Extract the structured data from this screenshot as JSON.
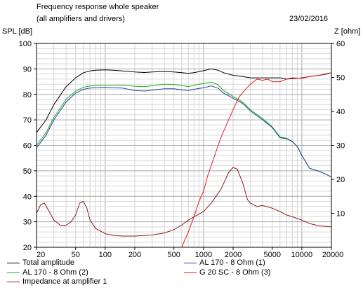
{
  "header": {
    "title_line1": "Frequency response whole speaker",
    "title_line2": "(all amplifiers and drivers)",
    "date": "23/02/2016",
    "left_axis_label": "SPL [dB]",
    "right_axis_label": "Z [ohm]"
  },
  "chart_data": {
    "type": "line",
    "title": "Frequency response whole speaker",
    "subtitle": "(all amplifiers and drivers)",
    "x_scale": "log",
    "xlim": [
      20,
      20000
    ],
    "x_ticks": [
      20,
      50,
      100,
      200,
      500,
      1000,
      2000,
      5000,
      10000,
      20000
    ],
    "x_tick_labels": [
      "20",
      "50",
      "100",
      "200",
      "500",
      "1000",
      "2000",
      "5000",
      "10000",
      "20000"
    ],
    "ylabel": "SPL [dB]",
    "ylim": [
      20,
      100
    ],
    "y_ticks": [
      20,
      30,
      40,
      50,
      60,
      70,
      80,
      90,
      100
    ],
    "y2label": "Z [ohm]",
    "y2lim": [
      0,
      60
    ],
    "y2_ticks": [
      10,
      20,
      30,
      40,
      50,
      60
    ],
    "grid": true,
    "legend_position": "bottom",
    "series": [
      {
        "name": "Total amplitude",
        "axis": "left",
        "color": "#000000",
        "points": [
          [
            20,
            65
          ],
          [
            25,
            70
          ],
          [
            30,
            76
          ],
          [
            40,
            83
          ],
          [
            50,
            86.5
          ],
          [
            60,
            88.5
          ],
          [
            70,
            89.2
          ],
          [
            80,
            89.5
          ],
          [
            100,
            89.6
          ],
          [
            120,
            89.5
          ],
          [
            150,
            89.2
          ],
          [
            200,
            88.8
          ],
          [
            250,
            88.6
          ],
          [
            300,
            88.8
          ],
          [
            400,
            89
          ],
          [
            500,
            88.8
          ],
          [
            600,
            88.5
          ],
          [
            700,
            88.3
          ],
          [
            800,
            88.5
          ],
          [
            1000,
            89.3
          ],
          [
            1200,
            90
          ],
          [
            1400,
            89.5
          ],
          [
            1600,
            88.5
          ],
          [
            2000,
            87.5
          ],
          [
            2500,
            87
          ],
          [
            3000,
            86.5
          ],
          [
            4000,
            86.5
          ],
          [
            5000,
            86.5
          ],
          [
            6000,
            86.5
          ],
          [
            7000,
            86
          ],
          [
            8000,
            86.2
          ],
          [
            10000,
            86.5
          ],
          [
            12000,
            87
          ],
          [
            15000,
            87.5
          ],
          [
            18000,
            88
          ],
          [
            20000,
            88.5
          ]
        ]
      },
      {
        "name": "AL 170 - 8 Ohm (1)",
        "axis": "left",
        "color": "#1f3fa0",
        "points": [
          [
            20,
            59
          ],
          [
            25,
            64
          ],
          [
            30,
            70
          ],
          [
            40,
            77
          ],
          [
            50,
            80.5
          ],
          [
            60,
            82
          ],
          [
            70,
            82.5
          ],
          [
            80,
            82.6
          ],
          [
            100,
            82.7
          ],
          [
            150,
            82.5
          ],
          [
            200,
            81.5
          ],
          [
            250,
            81.3
          ],
          [
            300,
            81.7
          ],
          [
            400,
            82.2
          ],
          [
            500,
            82.2
          ],
          [
            600,
            81.8
          ],
          [
            700,
            81.5
          ],
          [
            800,
            82
          ],
          [
            1000,
            82.6
          ],
          [
            1200,
            83.3
          ],
          [
            1400,
            82.5
          ],
          [
            1600,
            80.5
          ],
          [
            2000,
            78.5
          ],
          [
            2500,
            76.5
          ],
          [
            3000,
            73.5
          ],
          [
            4000,
            70
          ],
          [
            5000,
            67
          ],
          [
            6000,
            63
          ],
          [
            7000,
            62.6
          ],
          [
            8000,
            61.5
          ],
          [
            9000,
            59.5
          ],
          [
            10000,
            56
          ],
          [
            12000,
            51
          ],
          [
            15000,
            49.8
          ],
          [
            18000,
            48.5
          ],
          [
            20000,
            47.5
          ]
        ]
      },
      {
        "name": "AL 170 - 8 Ohm (2)",
        "axis": "left",
        "color": "#22aa22",
        "points": [
          [
            20,
            60
          ],
          [
            25,
            65
          ],
          [
            30,
            71
          ],
          [
            40,
            78
          ],
          [
            50,
            81.3
          ],
          [
            60,
            82.8
          ],
          [
            70,
            83.3
          ],
          [
            80,
            83.5
          ],
          [
            100,
            83.6
          ],
          [
            150,
            83.6
          ],
          [
            200,
            83.2
          ],
          [
            250,
            83
          ],
          [
            300,
            83.4
          ],
          [
            400,
            84
          ],
          [
            500,
            83.9
          ],
          [
            600,
            83.5
          ],
          [
            700,
            83
          ],
          [
            800,
            83.6
          ],
          [
            1000,
            84.3
          ],
          [
            1200,
            84.8
          ],
          [
            1400,
            83.8
          ],
          [
            1600,
            81.5
          ],
          [
            2000,
            79.2
          ],
          [
            2500,
            77
          ],
          [
            3000,
            74
          ],
          [
            4000,
            70.5
          ],
          [
            5000,
            67.3
          ],
          [
            6000,
            63.3
          ],
          [
            7000,
            62.8
          ],
          [
            8000,
            61.6
          ],
          [
            9000,
            59.6
          ],
          [
            10000,
            56
          ],
          [
            12000,
            51
          ],
          [
            15000,
            49.8
          ],
          [
            18000,
            48.5
          ],
          [
            20000,
            47.5
          ]
        ]
      },
      {
        "name": "G 20 SC - 8 Ohm (3)",
        "axis": "left",
        "color": "#dd2020",
        "points": [
          [
            600,
            20
          ],
          [
            700,
            26
          ],
          [
            800,
            32
          ],
          [
            900,
            38
          ],
          [
            1000,
            42
          ],
          [
            1100,
            48
          ],
          [
            1300,
            56
          ],
          [
            1500,
            63
          ],
          [
            1800,
            70
          ],
          [
            2000,
            74
          ],
          [
            2300,
            79
          ],
          [
            2600,
            81.5
          ],
          [
            3000,
            84
          ],
          [
            3500,
            86
          ],
          [
            4000,
            85.5
          ],
          [
            4500,
            86
          ],
          [
            5000,
            85
          ],
          [
            6000,
            85
          ],
          [
            7000,
            86
          ],
          [
            8000,
            86.5
          ],
          [
            10000,
            86.3
          ],
          [
            12000,
            87
          ],
          [
            15000,
            87.5
          ],
          [
            20000,
            88.5
          ]
        ]
      },
      {
        "name": "Impedance at amplifier 1",
        "axis": "right",
        "color": "#8b1a1a",
        "points": [
          [
            20,
            10
          ],
          [
            22,
            12.5
          ],
          [
            24,
            13
          ],
          [
            27,
            10.5
          ],
          [
            30,
            8
          ],
          [
            35,
            6.5
          ],
          [
            40,
            6.5
          ],
          [
            45,
            7.5
          ],
          [
            50,
            9.5
          ],
          [
            55,
            13
          ],
          [
            60,
            13.5
          ],
          [
            65,
            11.5
          ],
          [
            70,
            8
          ],
          [
            80,
            5.5
          ],
          [
            100,
            4
          ],
          [
            120,
            3.5
          ],
          [
            150,
            3.3
          ],
          [
            200,
            3.3
          ],
          [
            300,
            3.6
          ],
          [
            400,
            4.2
          ],
          [
            500,
            5.2
          ],
          [
            600,
            6.5
          ],
          [
            700,
            8
          ],
          [
            800,
            9
          ],
          [
            1000,
            10.5
          ],
          [
            1200,
            13
          ],
          [
            1500,
            17
          ],
          [
            1800,
            22
          ],
          [
            2000,
            23.5
          ],
          [
            2200,
            23
          ],
          [
            2500,
            19
          ],
          [
            2800,
            14
          ],
          [
            3000,
            13
          ],
          [
            3500,
            12
          ],
          [
            4000,
            12.3
          ],
          [
            5000,
            11.5
          ],
          [
            6000,
            10.5
          ],
          [
            7000,
            9.5
          ],
          [
            8000,
            9
          ],
          [
            10000,
            8
          ],
          [
            12000,
            7
          ],
          [
            15000,
            6.3
          ],
          [
            20000,
            6
          ]
        ]
      }
    ]
  }
}
